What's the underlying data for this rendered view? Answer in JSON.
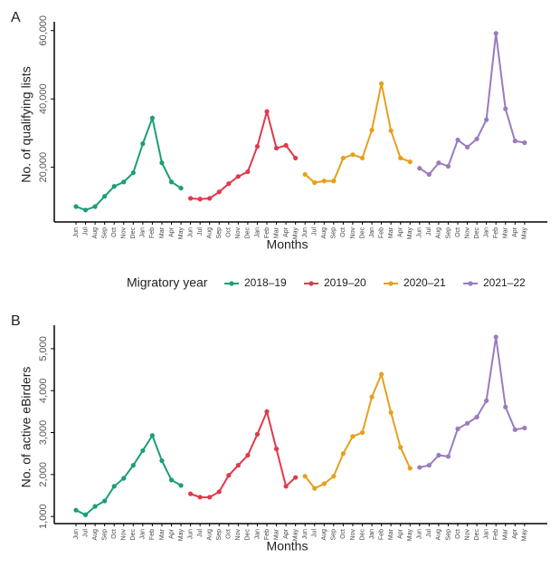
{
  "legend": {
    "title": "Migratory year",
    "position": "middle"
  },
  "chart_data": [
    {
      "type": "line",
      "panel_label": "A",
      "x_label": "Months",
      "y_label": "No. of qualifying lists",
      "categories": [
        "Jun",
        "Jul",
        "Aug",
        "Sep",
        "Oct",
        "Nov",
        "Dec",
        "Jan",
        "Feb",
        "Mar",
        "Apr",
        "May",
        "Jun",
        "Jul",
        "Aug",
        "Sep",
        "Oct",
        "Nov",
        "Dec",
        "Jan",
        "Feb",
        "Mar",
        "Apr",
        "May",
        "Jun",
        "Jul",
        "Aug",
        "Sep",
        "Oct",
        "Nov",
        "Dec",
        "Jan",
        "Feb",
        "Mar",
        "Apr",
        "May",
        "Jun",
        "Jul",
        "Aug",
        "Sep",
        "Oct",
        "Nov",
        "Dec",
        "Jan",
        "Feb",
        "Mar",
        "Apr",
        "May"
      ],
      "highlight_indices": [
        22,
        23,
        34,
        35
      ],
      "highlight_color": "#e8332a",
      "ylim": [
        4000,
        61000
      ],
      "yticks": [
        {
          "value": 20000,
          "label": "20,000"
        },
        {
          "value": 40000,
          "label": "40,000"
        },
        {
          "value": 60000,
          "label": "60,000"
        }
      ],
      "series": [
        {
          "name": "2018–19",
          "color": "#1b9e77",
          "values": [
            8500,
            7500,
            8500,
            11500,
            14400,
            15700,
            18400,
            26900,
            34400,
            21300,
            15700,
            13900,
            null,
            null,
            null,
            null,
            null,
            null,
            null,
            null,
            null,
            null,
            null,
            null,
            null,
            null,
            null,
            null,
            null,
            null,
            null,
            null,
            null,
            null,
            null,
            null,
            null,
            null,
            null,
            null,
            null,
            null,
            null,
            null,
            null,
            null,
            null,
            null
          ]
        },
        {
          "name": "2019–20",
          "color": "#e0394b",
          "values": [
            null,
            null,
            null,
            null,
            null,
            null,
            null,
            null,
            null,
            null,
            null,
            null,
            10900,
            10700,
            10900,
            12800,
            15200,
            17300,
            18700,
            26100,
            36300,
            25600,
            26400,
            22700,
            null,
            null,
            null,
            null,
            null,
            null,
            null,
            null,
            null,
            null,
            null,
            null,
            null,
            null,
            null,
            null,
            null,
            null,
            null,
            null,
            null,
            null,
            null,
            null
          ]
        },
        {
          "name": "2020–21",
          "color": "#e6a01c",
          "values": [
            null,
            null,
            null,
            null,
            null,
            null,
            null,
            null,
            null,
            null,
            null,
            null,
            null,
            null,
            null,
            null,
            null,
            null,
            null,
            null,
            null,
            null,
            null,
            null,
            17900,
            15500,
            16000,
            16000,
            22700,
            23700,
            22700,
            30900,
            44500,
            30700,
            22700,
            21600,
            null,
            null,
            null,
            null,
            null,
            null,
            null,
            null,
            null,
            null,
            null,
            null
          ]
        },
        {
          "name": "2021–22",
          "color": "#9a7bbd",
          "values": [
            null,
            null,
            null,
            null,
            null,
            null,
            null,
            null,
            null,
            null,
            null,
            null,
            null,
            null,
            null,
            null,
            null,
            null,
            null,
            null,
            null,
            null,
            null,
            null,
            null,
            null,
            null,
            null,
            null,
            null,
            null,
            null,
            null,
            null,
            null,
            null,
            19700,
            17900,
            21300,
            20300,
            28000,
            25900,
            28300,
            33900,
            59200,
            37100,
            27700,
            27200
          ]
        }
      ]
    },
    {
      "type": "line",
      "panel_label": "B",
      "x_label": "Months",
      "y_label": "No. of active eBirders",
      "categories": [
        "Jun",
        "Jul",
        "Aug",
        "Sep",
        "Oct",
        "Nov",
        "Dec",
        "Jan",
        "Feb",
        "Mar",
        "Apr",
        "May",
        "Jun",
        "Jul",
        "Aug",
        "Sep",
        "Oct",
        "Nov",
        "Dec",
        "Jan",
        "Feb",
        "Mar",
        "Apr",
        "May",
        "Jun",
        "Jul",
        "Aug",
        "Sep",
        "Oct",
        "Nov",
        "Dec",
        "Jan",
        "Feb",
        "Mar",
        "Apr",
        "May",
        "Jun",
        "Jul",
        "Aug",
        "Sep",
        "Oct",
        "Nov",
        "Dec",
        "Jan",
        "Feb",
        "Mar",
        "Apr",
        "May"
      ],
      "highlight_indices": [
        22,
        23,
        34,
        35
      ],
      "highlight_color": "#e8332a",
      "ylim": [
        830,
        5430
      ],
      "yticks": [
        {
          "value": 1000,
          "label": "1,000"
        },
        {
          "value": 2000,
          "label": "2,000"
        },
        {
          "value": 3000,
          "label": "3,000"
        },
        {
          "value": 4000,
          "label": "4,000"
        },
        {
          "value": 5000,
          "label": "5,000"
        }
      ],
      "series": [
        {
          "name": "2018–19",
          "color": "#1b9e77",
          "values": [
            1150,
            1040,
            1240,
            1370,
            1720,
            1910,
            2220,
            2570,
            2930,
            2330,
            1870,
            1740,
            null,
            null,
            null,
            null,
            null,
            null,
            null,
            null,
            null,
            null,
            null,
            null,
            null,
            null,
            null,
            null,
            null,
            null,
            null,
            null,
            null,
            null,
            null,
            null,
            null,
            null,
            null,
            null,
            null,
            null,
            null,
            null,
            null,
            null,
            null,
            null
          ]
        },
        {
          "name": "2019–20",
          "color": "#e0394b",
          "values": [
            null,
            null,
            null,
            null,
            null,
            null,
            null,
            null,
            null,
            null,
            null,
            null,
            1540,
            1460,
            1460,
            1590,
            1980,
            2220,
            2460,
            2960,
            3500,
            2610,
            1720,
            1930,
            null,
            null,
            null,
            null,
            null,
            null,
            null,
            null,
            null,
            null,
            null,
            null,
            null,
            null,
            null,
            null,
            null,
            null,
            null,
            null,
            null,
            null,
            null,
            null
          ]
        },
        {
          "name": "2020–21",
          "color": "#e6a01c",
          "values": [
            null,
            null,
            null,
            null,
            null,
            null,
            null,
            null,
            null,
            null,
            null,
            null,
            null,
            null,
            null,
            null,
            null,
            null,
            null,
            null,
            null,
            null,
            null,
            null,
            1960,
            1670,
            1780,
            1960,
            2500,
            2910,
            3000,
            3850,
            4390,
            3480,
            2650,
            2150,
            null,
            null,
            null,
            null,
            null,
            null,
            null,
            null,
            null,
            null,
            null,
            null
          ]
        },
        {
          "name": "2021–22",
          "color": "#9a7bbd",
          "values": [
            null,
            null,
            null,
            null,
            null,
            null,
            null,
            null,
            null,
            null,
            null,
            null,
            null,
            null,
            null,
            null,
            null,
            null,
            null,
            null,
            null,
            null,
            null,
            null,
            null,
            null,
            null,
            null,
            null,
            null,
            null,
            null,
            null,
            null,
            null,
            null,
            2170,
            2220,
            2460,
            2430,
            3090,
            3220,
            3370,
            3760,
            5280,
            3610,
            3070,
            3110
          ]
        }
      ]
    }
  ]
}
